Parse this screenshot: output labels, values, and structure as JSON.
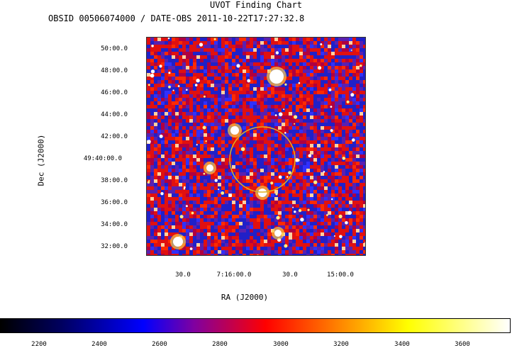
{
  "chart_data": {
    "type": "heatmap",
    "title": "UVOT Finding Chart",
    "subtitle": "OBSID 00506074000 / DATE-OBS 2011-10-22T17:27:32.8",
    "xlabel": "RA (J2000)",
    "ylabel": "Dec (J2000)",
    "dec_ticks": [
      "50:00.0",
      "48:00.0",
      "46:00.0",
      "44:00.0",
      "42:00.0",
      "49:40:00.0",
      "38:00.0",
      "36:00.0",
      "34:00.0",
      "32:00.0"
    ],
    "ra_ticks": [
      "30.0",
      "7:16:00.0",
      "30.0",
      "15:00.0"
    ],
    "colorbar": {
      "ticks": [
        2200,
        2400,
        2600,
        2800,
        3000,
        3200,
        3400,
        3600
      ],
      "range": [
        2050,
        3760
      ],
      "colors": [
        "#000000",
        "#0000ff",
        "#ff0000",
        "#ffff00",
        "#ffffff"
      ]
    },
    "circle_marker": {
      "color": "#e0b020"
    },
    "bright_sources": [
      {
        "ra": "7:15:54",
        "dec": "47:40"
      },
      {
        "ra": "7:16:14",
        "dec": "42:40"
      },
      {
        "ra": "7:16:20",
        "dec": "39:00"
      },
      {
        "ra": "7:15:54",
        "dec": "36:50"
      },
      {
        "ra": "7:15:50",
        "dec": "33:00"
      },
      {
        "ra": "7:16:36",
        "dec": "32:30"
      }
    ]
  }
}
